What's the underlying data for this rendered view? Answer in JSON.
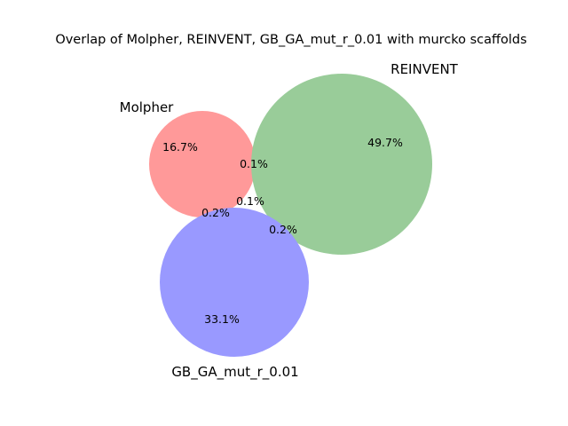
{
  "title": "Overlap of Molpher, REINVENT, GB_GA_mut_r_0.01 with murcko scaffolds",
  "sets": {
    "molpher": {
      "label": "Molpher",
      "color": "#ff9999"
    },
    "reinvent": {
      "label": "REINVENT",
      "color": "#99cc99"
    },
    "gbga": {
      "label": "GB_GA_mut_r_0.01",
      "color": "#9999ff"
    }
  },
  "regions": {
    "molpher_only": "16.7%",
    "reinvent_only": "49.7%",
    "gbga_only": "33.1%",
    "molpher_reinvent": "0.1%",
    "all_three": "0.1%",
    "molpher_gbga": "0.2%",
    "reinvent_gbga": "0.2%"
  },
  "chart_data": {
    "type": "venn3",
    "title": "Overlap of Molpher, REINVENT, GB_GA_mut_r_0.01 with murcko scaffolds",
    "sets": [
      "Molpher",
      "REINVENT",
      "GB_GA_mut_r_0.01"
    ],
    "region_percentages": {
      "Molpher only": 16.7,
      "REINVENT only": 49.7,
      "GB_GA_mut_r_0.01 only": 33.1,
      "Molpher & REINVENT only": 0.1,
      "Molpher & GB_GA_mut_r_0.01 only": 0.2,
      "REINVENT & GB_GA_mut_r_0.01 only": 0.2,
      "All three": 0.1
    }
  }
}
